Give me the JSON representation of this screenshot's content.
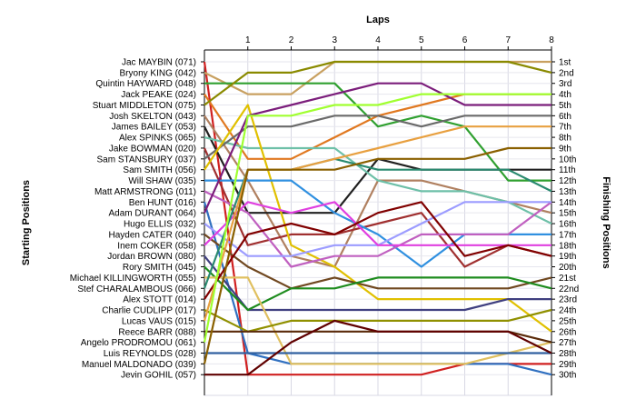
{
  "chart_data": {
    "type": "line",
    "title": "",
    "xlabel": "Laps",
    "ylabel_left": "Starting Positions",
    "ylabel_right": "Finishing Positions",
    "x_ticks": [
      "1",
      "2",
      "3",
      "4",
      "5",
      "6",
      "7",
      "8"
    ],
    "grid": true,
    "y_range": [
      1,
      30
    ],
    "finishing_labels": [
      "1st",
      "2nd",
      "3rd",
      "4th",
      "5th",
      "6th",
      "7th",
      "8th",
      "9th",
      "10th",
      "11th",
      "12th",
      "13th",
      "14th",
      "15th",
      "16th",
      "17th",
      "18th",
      "19th",
      "20th",
      "21st",
      "22nd",
      "23rd",
      "24th",
      "25th",
      "26th",
      "27th",
      "28th",
      "29th",
      "30th"
    ],
    "series": [
      {
        "name": "Jac MAYBIN (071)",
        "color": "#d02020",
        "positions": [
          1,
          30,
          30,
          30,
          30,
          30,
          29,
          29,
          29
        ]
      },
      {
        "name": "Bryony KING (042)",
        "color": "#c8a060",
        "positions": [
          2,
          4,
          4,
          1,
          1,
          1,
          1,
          1,
          1
        ]
      },
      {
        "name": "Quintin HAYWARD (048)",
        "color": "#30a030",
        "positions": [
          3,
          3,
          3,
          3,
          7,
          6,
          7,
          12,
          12
        ]
      },
      {
        "name": "Jack PEAKE (024)",
        "color": "#e07820",
        "positions": [
          4,
          10,
          10,
          8,
          6,
          5,
          4,
          4,
          4
        ]
      },
      {
        "name": "Stuart MIDDLETON (075)",
        "color": "#8a8a00",
        "positions": [
          5,
          2,
          2,
          1,
          1,
          1,
          1,
          1,
          2
        ]
      },
      {
        "name": "Josh SKELTON (043)",
        "color": "#b08060",
        "positions": [
          6,
          12,
          19,
          20,
          12,
          12,
          13,
          14,
          15
        ]
      },
      {
        "name": "James BAILEY (053)",
        "color": "#202020",
        "positions": [
          7,
          15,
          15,
          15,
          10,
          11,
          11,
          11,
          11
        ]
      },
      {
        "name": "Alex SPINKS (065)",
        "color": "#6ec0a8",
        "positions": [
          8,
          9,
          9,
          9,
          12,
          13,
          13,
          14,
          16
        ]
      },
      {
        "name": "Jake BOWMAN (020)",
        "color": "#a03030",
        "positions": [
          9,
          18,
          17,
          17,
          16,
          15,
          20,
          18,
          19
        ]
      },
      {
        "name": "Sam STANSBURY (037)",
        "color": "#6a6a6a",
        "positions": [
          10,
          7,
          7,
          6,
          6,
          7,
          6,
          6,
          6
        ]
      },
      {
        "name": "Sam SMITH (056)",
        "color": "#e0c000",
        "positions": [
          11,
          5,
          18,
          20,
          23,
          23,
          23,
          23,
          26
        ]
      },
      {
        "name": "Will SHAW (035)",
        "color": "#3090e0",
        "positions": [
          12,
          12,
          12,
          15,
          17,
          20,
          17,
          17,
          17
        ]
      },
      {
        "name": "Matt ARMSTRONG (011)",
        "color": "#c060c0",
        "positions": [
          13,
          15,
          20,
          19,
          19,
          17,
          17,
          17,
          14
        ]
      },
      {
        "name": "Ben HUNT (016)",
        "color": "#3070c0",
        "positions": [
          14,
          28,
          29,
          29,
          29,
          29,
          29,
          29,
          30
        ]
      },
      {
        "name": "Adam DURANT (064)",
        "color": "#7b1d7b",
        "positions": [
          15,
          6,
          5,
          4,
          3,
          3,
          5,
          5,
          5
        ]
      },
      {
        "name": "Hugo ELLIS (032)",
        "color": "#9c9cff",
        "positions": [
          16,
          19,
          19,
          18,
          18,
          16,
          14,
          14,
          14
        ]
      },
      {
        "name": "Hayden CATER (040)",
        "color": "#704820",
        "positions": [
          17,
          20,
          22,
          21,
          22,
          22,
          22,
          22,
          21
        ]
      },
      {
        "name": "Inem COKER (058)",
        "color": "#e040e0",
        "positions": [
          18,
          14,
          15,
          14,
          18,
          18,
          18,
          18,
          18
        ]
      },
      {
        "name": "Jordan BROWN (080)",
        "color": "#404080",
        "positions": [
          19,
          24,
          24,
          24,
          24,
          24,
          24,
          23,
          23
        ]
      },
      {
        "name": "Rory SMITH (045)",
        "color": "#1e8c1e",
        "positions": [
          20,
          24,
          22,
          22,
          21,
          21,
          21,
          21,
          22
        ]
      },
      {
        "name": "Michael KILLINGWORTH (055)",
        "color": "#e0c060",
        "positions": [
          21,
          21,
          29,
          29,
          29,
          29,
          29,
          28,
          27
        ]
      },
      {
        "name": "Stef CHARALAMBOUS (066)",
        "color": "#2a8a70",
        "positions": [
          22,
          11,
          11,
          10,
          11,
          11,
          11,
          11,
          13
        ]
      },
      {
        "name": "Alex STOTT (014)",
        "color": "#800000",
        "positions": [
          23,
          17,
          16,
          17,
          15,
          14,
          19,
          18,
          19
        ]
      },
      {
        "name": "Charlie CUDLIPP (017)",
        "color": "#909000",
        "positions": [
          24,
          26,
          25,
          25,
          25,
          25,
          25,
          25,
          24
        ]
      },
      {
        "name": "Lucas VAUS (015)",
        "color": "#e8a040",
        "positions": [
          25,
          11,
          11,
          10,
          9,
          8,
          7,
          7,
          7
        ]
      },
      {
        "name": "Reece BARR (088)",
        "color": "#5a2a0a",
        "positions": [
          26,
          26,
          26,
          26,
          26,
          26,
          26,
          26,
          27
        ]
      },
      {
        "name": "Angelo PRODROMOU (061)",
        "color": "#a0ff30",
        "positions": [
          27,
          6,
          6,
          5,
          5,
          4,
          4,
          4,
          4
        ]
      },
      {
        "name": "Luis REYNOLDS (028)",
        "color": "#3060a0",
        "positions": [
          28,
          28,
          28,
          28,
          28,
          28,
          28,
          28,
          28
        ]
      },
      {
        "name": "Manuel MALDONADO (039)",
        "color": "#8a6000",
        "positions": [
          29,
          11,
          11,
          11,
          10,
          10,
          10,
          9,
          9
        ]
      },
      {
        "name": "Jevin GOHIL (057)",
        "color": "#600000",
        "positions": [
          30,
          30,
          27,
          25,
          26,
          26,
          26,
          26,
          28
        ]
      }
    ]
  }
}
